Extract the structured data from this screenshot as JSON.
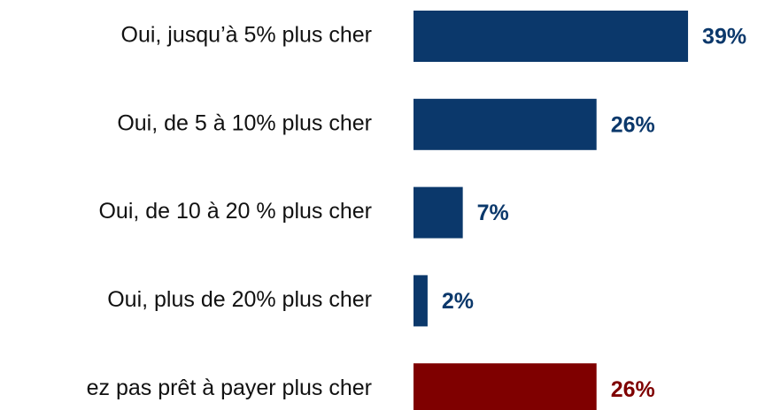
{
  "chart_data": {
    "type": "bar",
    "orientation": "horizontal",
    "categories": [
      "Oui, jusqu’à 5% plus cher",
      "Oui, de 5 à 10% plus cher",
      "Oui, de 10 à 20 % plus cher",
      "Oui, plus de 20% plus cher",
      "ez pas prêt à payer plus cher"
    ],
    "values": [
      39,
      26,
      7,
      2,
      26
    ],
    "value_labels": [
      "39%",
      "26%",
      "7%",
      "2%",
      "26%"
    ],
    "colors": [
      "#0b386b",
      "#0b386b",
      "#0b386b",
      "#0b386b",
      "#7f0000"
    ]
  }
}
